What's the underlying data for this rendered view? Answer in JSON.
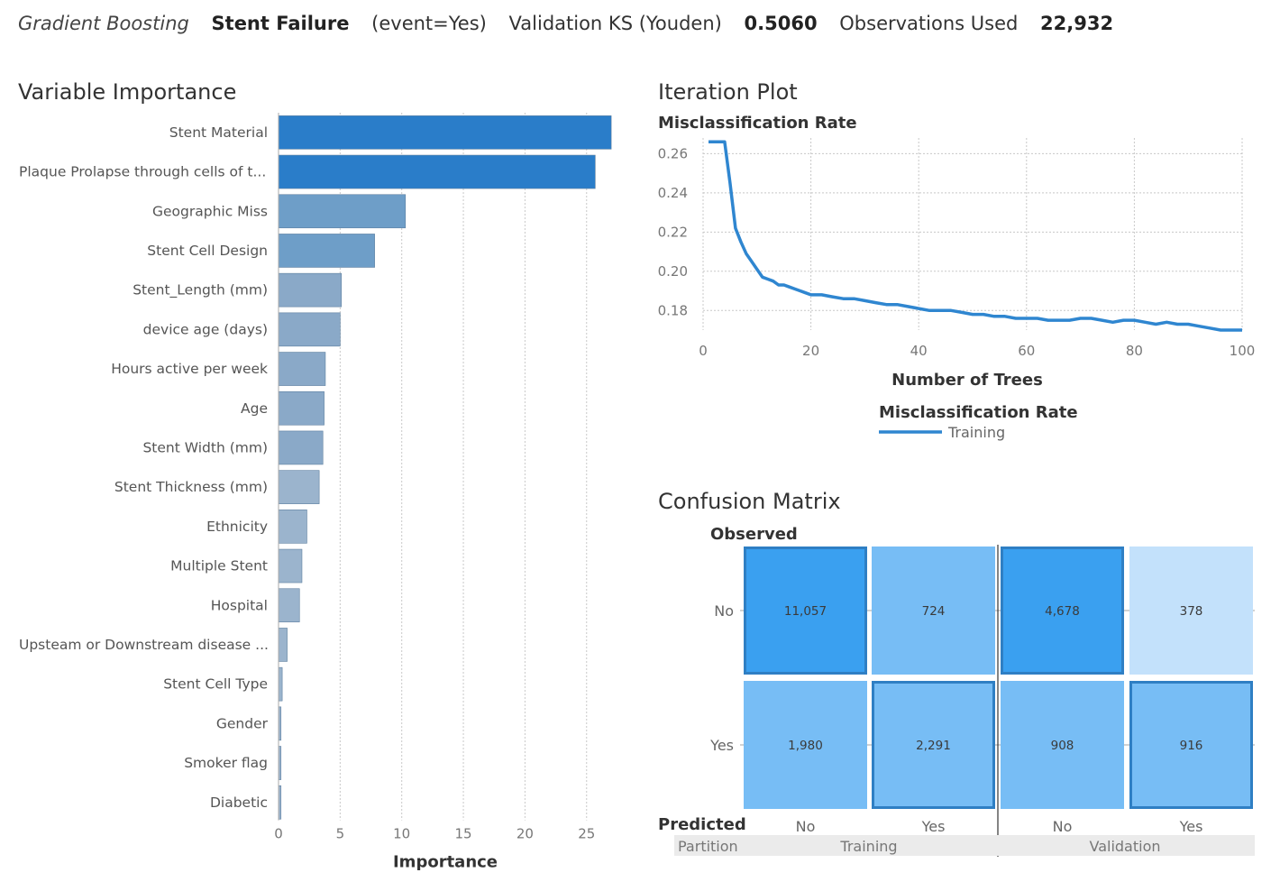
{
  "header": {
    "model_name": "Gradient Boosting",
    "target": "Stent Failure",
    "event": "(event=Yes)",
    "stat_label": "Validation KS (Youden)",
    "stat_value": "0.5060",
    "obs_label": "Observations Used",
    "obs_value": "22,932"
  },
  "chart_data": [
    {
      "type": "bar",
      "orientation": "horizontal",
      "title": "Variable Importance",
      "xlabel": "Importance",
      "ylabel": "",
      "xlim": [
        0,
        27
      ],
      "xticks": [
        0,
        5,
        10,
        15,
        20,
        25
      ],
      "grid": true,
      "categories": [
        "Stent Material",
        "Plaque Prolapse through cells of t...",
        "Geographic Miss",
        "Stent Cell Design",
        "Stent_Length (mm)",
        "device age (days)",
        "Hours active per week",
        "Age",
        "Stent Width (mm)",
        "Stent Thickness (mm)",
        "Ethnicity",
        "Multiple Stent",
        "Hospital",
        "Upsteam or Downstream disease ...",
        "Stent Cell Type",
        "Gender",
        "Smoker flag",
        "Diabetic"
      ],
      "values": [
        27.0,
        25.7,
        10.3,
        7.8,
        5.1,
        5.0,
        3.8,
        3.7,
        3.6,
        3.3,
        2.3,
        1.9,
        1.7,
        0.7,
        0.3,
        0.2,
        0.2,
        0.2
      ],
      "colors": {
        "top": "#2a7dc9",
        "high": "#6e9ec8",
        "mid": "#8aa9c8",
        "low": "#9bb4cd"
      }
    },
    {
      "type": "line",
      "title": "Iteration Plot",
      "subtitle": "Misclassification Rate",
      "xlabel": "Number of Trees",
      "ylabel": "",
      "xlim": [
        0,
        100
      ],
      "ylim": [
        0.17,
        0.268
      ],
      "xticks": [
        0,
        20,
        40,
        60,
        80,
        100
      ],
      "yticks": [
        0.18,
        0.2,
        0.22,
        0.24,
        0.26
      ],
      "ytick_labels": [
        "0.18",
        "0.20",
        "0.22",
        "0.24",
        "0.26"
      ],
      "grid": true,
      "legend_title": "Misclassification Rate",
      "legend_position": "bottom",
      "series": [
        {
          "name": "Training",
          "color": "#2f86d0",
          "x": [
            1,
            2,
            3,
            4,
            5,
            6,
            7,
            8,
            9,
            10,
            11,
            12,
            13,
            14,
            15,
            16,
            17,
            18,
            19,
            20,
            21,
            22,
            24,
            26,
            28,
            30,
            32,
            34,
            36,
            38,
            40,
            42,
            44,
            46,
            48,
            50,
            52,
            54,
            56,
            58,
            60,
            62,
            64,
            66,
            68,
            70,
            72,
            74,
            76,
            78,
            80,
            82,
            84,
            86,
            88,
            90,
            92,
            94,
            96,
            98,
            100
          ],
          "y": [
            0.266,
            0.266,
            0.266,
            0.266,
            0.245,
            0.222,
            0.215,
            0.209,
            0.205,
            0.201,
            0.197,
            0.196,
            0.195,
            0.193,
            0.193,
            0.192,
            0.191,
            0.19,
            0.189,
            0.188,
            0.188,
            0.188,
            0.187,
            0.186,
            0.186,
            0.185,
            0.184,
            0.183,
            0.183,
            0.182,
            0.181,
            0.18,
            0.18,
            0.18,
            0.179,
            0.178,
            0.178,
            0.177,
            0.177,
            0.176,
            0.176,
            0.176,
            0.175,
            0.175,
            0.175,
            0.176,
            0.176,
            0.175,
            0.174,
            0.175,
            0.175,
            0.174,
            0.173,
            0.174,
            0.173,
            0.173,
            0.172,
            0.171,
            0.17,
            0.17,
            0.17
          ]
        }
      ]
    },
    {
      "type": "heatmap",
      "title": "Confusion Matrix",
      "row_axis_label": "Observed",
      "col_axis_label": "Predicted",
      "partition_label": "Partition",
      "rows": [
        "No",
        "Yes"
      ],
      "cols": [
        "No",
        "Yes",
        "No",
        "Yes"
      ],
      "partitions": [
        "Training",
        "Validation"
      ],
      "values": [
        [
          11057,
          724,
          4678,
          378
        ],
        [
          1980,
          2291,
          908,
          916
        ]
      ],
      "labels": [
        [
          "11,057",
          "724",
          "4,678",
          "378"
        ],
        [
          "1,980",
          "2,291",
          "908",
          "916"
        ]
      ],
      "correct_cells": [
        [
          0,
          0
        ],
        [
          1,
          1
        ],
        [
          0,
          2
        ],
        [
          1,
          3
        ]
      ],
      "colors": {
        "high": "#3aa0f0",
        "mid": "#77bdf5",
        "low": "#c3e1fb",
        "border": "#2f7fc4"
      }
    }
  ]
}
